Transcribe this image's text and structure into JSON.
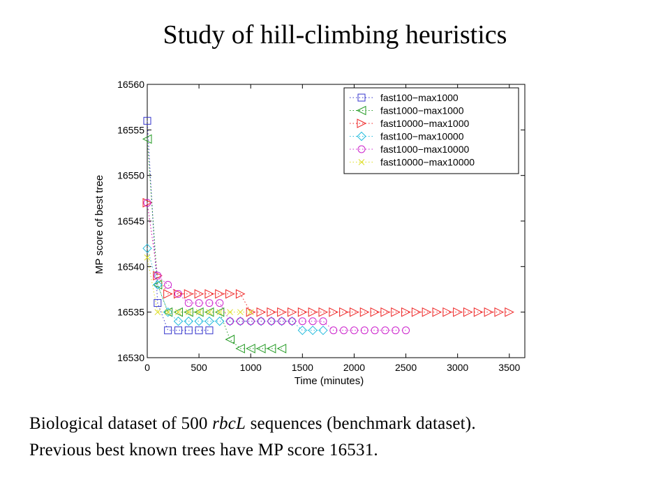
{
  "slide": {
    "title": "Study of hill-climbing heuristics",
    "caption_line1_pre": "Biological dataset of 500 ",
    "caption_line1_italic": "rbcL",
    "caption_line1_post": " sequences (benchmark dataset).",
    "caption_line2": "Previous best known trees have MP score 16531."
  },
  "chart_data": {
    "type": "line",
    "xlabel": "Time (minutes)",
    "ylabel": "MP score of best tree",
    "xlim": [
      0,
      3650
    ],
    "ylim": [
      16530,
      16560
    ],
    "xticks": [
      0,
      500,
      1000,
      1500,
      2000,
      2500,
      3000,
      3500
    ],
    "yticks": [
      16530,
      16535,
      16540,
      16545,
      16550,
      16555,
      16560
    ],
    "grid": false,
    "legend": "top-right",
    "series": [
      {
        "name": "fast100−max1000",
        "color": "#3333cc",
        "marker": "square",
        "points": [
          [
            0,
            16556
          ],
          [
            100,
            16536
          ],
          [
            200,
            16533
          ],
          [
            300,
            16533
          ],
          [
            400,
            16533
          ],
          [
            500,
            16533
          ],
          [
            600,
            16533
          ]
        ]
      },
      {
        "name": "fast1000−max1000",
        "color": "#229922",
        "marker": "triangle-left",
        "points": [
          [
            0,
            16554
          ],
          [
            100,
            16538
          ],
          [
            200,
            16535
          ],
          [
            300,
            16535
          ],
          [
            400,
            16535
          ],
          [
            500,
            16535
          ],
          [
            600,
            16535
          ],
          [
            700,
            16535
          ],
          [
            800,
            16532
          ],
          [
            900,
            16531
          ],
          [
            1000,
            16531
          ],
          [
            1100,
            16531
          ],
          [
            1200,
            16531
          ],
          [
            1300,
            16531
          ]
        ]
      },
      {
        "name": "fast10000−max1000",
        "color": "#ee2222",
        "marker": "triangle-right",
        "points": [
          [
            0,
            16547
          ],
          [
            100,
            16539
          ],
          [
            200,
            16537
          ],
          [
            300,
            16537
          ],
          [
            400,
            16537
          ],
          [
            500,
            16537
          ],
          [
            600,
            16537
          ],
          [
            700,
            16537
          ],
          [
            800,
            16537
          ],
          [
            900,
            16537
          ],
          [
            1000,
            16535
          ],
          [
            1100,
            16535
          ],
          [
            1200,
            16535
          ],
          [
            1300,
            16535
          ],
          [
            1400,
            16535
          ],
          [
            1500,
            16535
          ],
          [
            1600,
            16535
          ],
          [
            1700,
            16535
          ],
          [
            1800,
            16535
          ],
          [
            1900,
            16535
          ],
          [
            2000,
            16535
          ],
          [
            2100,
            16535
          ],
          [
            2200,
            16535
          ],
          [
            2300,
            16535
          ],
          [
            2400,
            16535
          ],
          [
            2500,
            16535
          ],
          [
            2600,
            16535
          ],
          [
            2700,
            16535
          ],
          [
            2800,
            16535
          ],
          [
            2900,
            16535
          ],
          [
            3000,
            16535
          ],
          [
            3100,
            16535
          ],
          [
            3200,
            16535
          ],
          [
            3300,
            16535
          ],
          [
            3400,
            16535
          ],
          [
            3500,
            16535
          ]
        ]
      },
      {
        "name": "fast100−max10000",
        "color": "#22bbdd",
        "marker": "diamond",
        "points": [
          [
            0,
            16542
          ],
          [
            100,
            16538
          ],
          [
            200,
            16535
          ],
          [
            300,
            16534
          ],
          [
            400,
            16534
          ],
          [
            500,
            16534
          ],
          [
            600,
            16534
          ],
          [
            700,
            16534
          ],
          [
            800,
            16534
          ],
          [
            900,
            16534
          ],
          [
            1000,
            16534
          ],
          [
            1100,
            16534
          ],
          [
            1200,
            16534
          ],
          [
            1300,
            16534
          ],
          [
            1400,
            16534
          ],
          [
            1500,
            16533
          ],
          [
            1600,
            16533
          ],
          [
            1700,
            16533
          ]
        ]
      },
      {
        "name": "fast1000−max10000",
        "color": "#cc22cc",
        "marker": "circle",
        "points": [
          [
            0,
            16547
          ],
          [
            100,
            16539
          ],
          [
            200,
            16538
          ],
          [
            300,
            16537
          ],
          [
            400,
            16536
          ],
          [
            500,
            16536
          ],
          [
            600,
            16536
          ],
          [
            700,
            16536
          ],
          [
            800,
            16534
          ],
          [
            900,
            16534
          ],
          [
            1000,
            16534
          ],
          [
            1100,
            16534
          ],
          [
            1200,
            16534
          ],
          [
            1300,
            16534
          ],
          [
            1400,
            16534
          ],
          [
            1500,
            16534
          ],
          [
            1600,
            16534
          ],
          [
            1700,
            16534
          ],
          [
            1800,
            16533
          ],
          [
            1900,
            16533
          ],
          [
            2000,
            16533
          ],
          [
            2100,
            16533
          ],
          [
            2200,
            16533
          ],
          [
            2300,
            16533
          ],
          [
            2400,
            16533
          ],
          [
            2500,
            16533
          ]
        ]
      },
      {
        "name": "fast10000−max10000",
        "color": "#dddd22",
        "marker": "x",
        "points": [
          [
            0,
            16541
          ],
          [
            100,
            16535
          ],
          [
            200,
            16535
          ],
          [
            300,
            16535
          ],
          [
            400,
            16535
          ],
          [
            500,
            16535
          ],
          [
            600,
            16535
          ],
          [
            700,
            16535
          ],
          [
            800,
            16535
          ],
          [
            900,
            16535
          ],
          [
            1000,
            16535
          ]
        ]
      }
    ]
  }
}
